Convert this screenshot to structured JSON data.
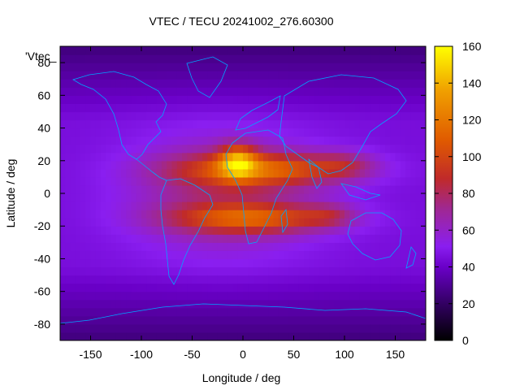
{
  "chart_data": {
    "type": "heatmap",
    "title": "VTEC / TECU 20241002_276.60300",
    "xlabel": "Longitude / deg",
    "ylabel": "Latitude / deg",
    "xlim": [
      -180,
      180
    ],
    "ylim": [
      -90,
      90
    ],
    "x_ticks": [
      -150,
      -100,
      -50,
      0,
      50,
      100,
      150
    ],
    "y_ticks": [
      -80,
      -60,
      -40,
      -20,
      0,
      20,
      40,
      60,
      80
    ],
    "colorbar": {
      "min": 0,
      "max": 160,
      "ticks": [
        0,
        20,
        40,
        60,
        80,
        100,
        120,
        140,
        160
      ]
    },
    "legend_entry": "'Vtec_",
    "map_overlay": "coastlines",
    "features": [
      {
        "kind": "peak",
        "lon": -5,
        "lat": 20,
        "value": 160
      },
      {
        "kind": "crest",
        "lon_range": [
          -120,
          140
        ],
        "lat": 15,
        "value": 110
      },
      {
        "kind": "crest",
        "lon_range": [
          -100,
          110
        ],
        "lat": -15,
        "value": 105
      },
      {
        "kind": "background",
        "value": 45
      },
      {
        "kind": "polar_low",
        "value": 25
      }
    ]
  }
}
